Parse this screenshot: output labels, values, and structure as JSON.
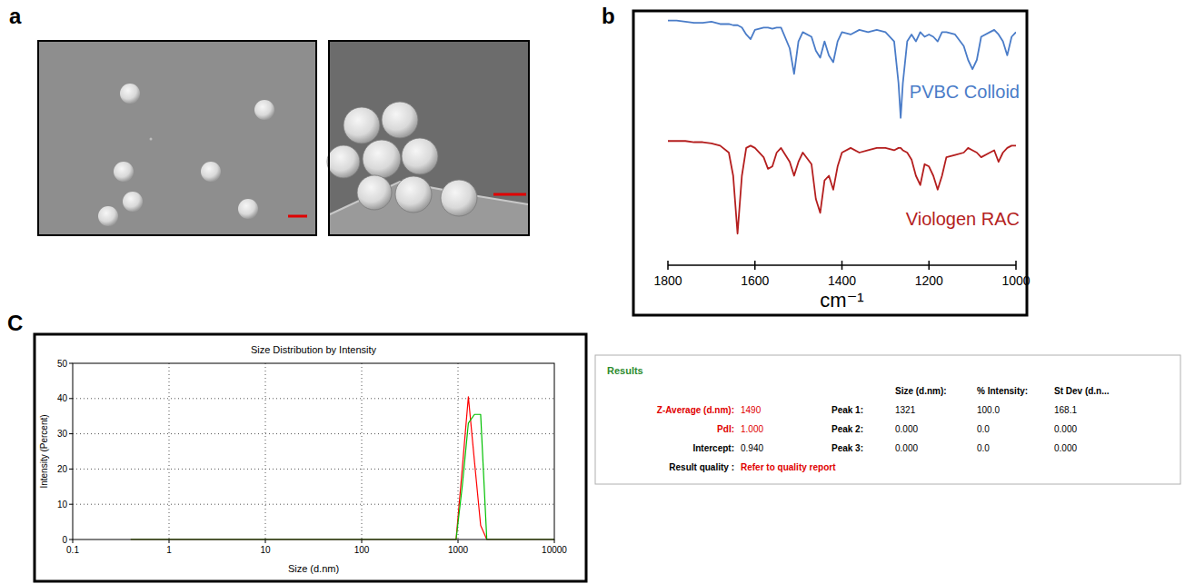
{
  "panel_labels": {
    "a": "a",
    "b": "b",
    "c": "C"
  },
  "chart_data": [
    {
      "type": "line",
      "x_label": "cm⁻¹",
      "x": [
        1800,
        1780,
        1760,
        1740,
        1720,
        1700,
        1680,
        1660,
        1650,
        1640,
        1630,
        1620,
        1610,
        1600,
        1580,
        1570,
        1560,
        1550,
        1540,
        1520,
        1510,
        1500,
        1490,
        1470,
        1460,
        1450,
        1440,
        1430,
        1420,
        1410,
        1400,
        1380,
        1360,
        1340,
        1320,
        1300,
        1280,
        1270,
        1265,
        1260,
        1250,
        1240,
        1230,
        1220,
        1210,
        1200,
        1190,
        1180,
        1170,
        1160,
        1140,
        1120,
        1110,
        1100,
        1090,
        1080,
        1060,
        1050,
        1040,
        1030,
        1020,
        1010,
        1000
      ],
      "xlim": [
        1800,
        1000
      ],
      "xticks": [
        1800,
        1600,
        1400,
        1200,
        1000
      ],
      "ylim": [
        0,
        100
      ],
      "tick_labels": "x",
      "series": [
        {
          "name": "PVBC Colloid",
          "color": "#4a7cc8",
          "values": [
            97,
            97,
            96.5,
            96,
            96,
            96.5,
            95.5,
            95.5,
            95,
            95,
            94,
            91,
            89,
            93,
            94,
            94,
            93.5,
            94,
            94,
            85,
            74,
            88,
            92,
            90,
            84,
            81,
            88,
            82,
            79,
            88,
            92,
            91,
            93,
            92,
            93,
            92,
            88,
            70,
            55,
            70,
            88,
            91,
            88,
            92,
            90,
            91,
            90,
            88,
            92,
            92,
            91,
            86,
            80,
            76,
            80,
            90,
            92,
            93,
            91,
            88,
            82,
            90,
            92
          ]
        },
        {
          "name": "Viologen RAC",
          "color": "#b41e1e",
          "values": [
            45,
            45,
            45,
            44.5,
            44.5,
            44,
            43,
            40,
            30,
            5,
            30,
            42,
            43,
            42,
            38,
            33,
            34,
            40,
            42,
            36,
            30,
            36,
            40,
            35,
            20,
            14,
            28,
            30,
            24,
            34,
            40,
            42,
            40,
            41,
            42,
            42,
            41,
            42,
            42,
            41,
            40,
            37,
            30,
            26,
            35,
            34,
            30,
            24,
            30,
            38,
            39,
            40,
            42,
            41,
            40,
            38,
            40,
            41,
            36,
            40,
            42,
            43,
            43
          ]
        }
      ]
    },
    {
      "type": "line",
      "title": "Size Distribution by Intensity",
      "x_label": "Size (d.nm)",
      "y_label": "Intensity (Percent)",
      "log": "x",
      "x": [
        0.4,
        955,
        1106,
        1281,
        1484,
        1718,
        1990,
        10000
      ],
      "xlim": [
        0.1,
        10000
      ],
      "xticks": [
        0.1,
        1,
        10,
        100,
        1000,
        10000
      ],
      "ylim": [
        0,
        50
      ],
      "yticks": [
        0,
        10,
        20,
        30,
        40,
        50
      ],
      "grid": true,
      "series": [
        {
          "color": "#ff0000",
          "values": [
            0,
            0,
            20,
            40.5,
            22,
            4,
            0,
            0
          ]
        },
        {
          "color": "#00c000",
          "values": [
            0,
            0,
            15,
            33,
            35.5,
            35.5,
            0,
            0
          ]
        }
      ]
    }
  ],
  "results_table": {
    "title": "Results",
    "columns": [
      "Size (d.nm):",
      "% Intensity:",
      "St Dev (d.n..."
    ],
    "left_rows": [
      {
        "label": "Z-Average (d.nm):",
        "value": "1490"
      },
      {
        "label": "PdI:",
        "value": "1.000"
      },
      {
        "label": "Intercept:",
        "value": "0.940"
      },
      {
        "label": "Result quality :",
        "value": "Refer to quality report"
      }
    ],
    "peaks": [
      {
        "label": "Peak 1:",
        "values": [
          "1321",
          "100.0",
          "168.1"
        ]
      },
      {
        "label": "Peak 2:",
        "values": [
          "0.000",
          "0.0",
          "0.000"
        ]
      },
      {
        "label": "Peak 3:",
        "values": [
          "0.000",
          "0.0",
          "0.000"
        ]
      }
    ]
  }
}
